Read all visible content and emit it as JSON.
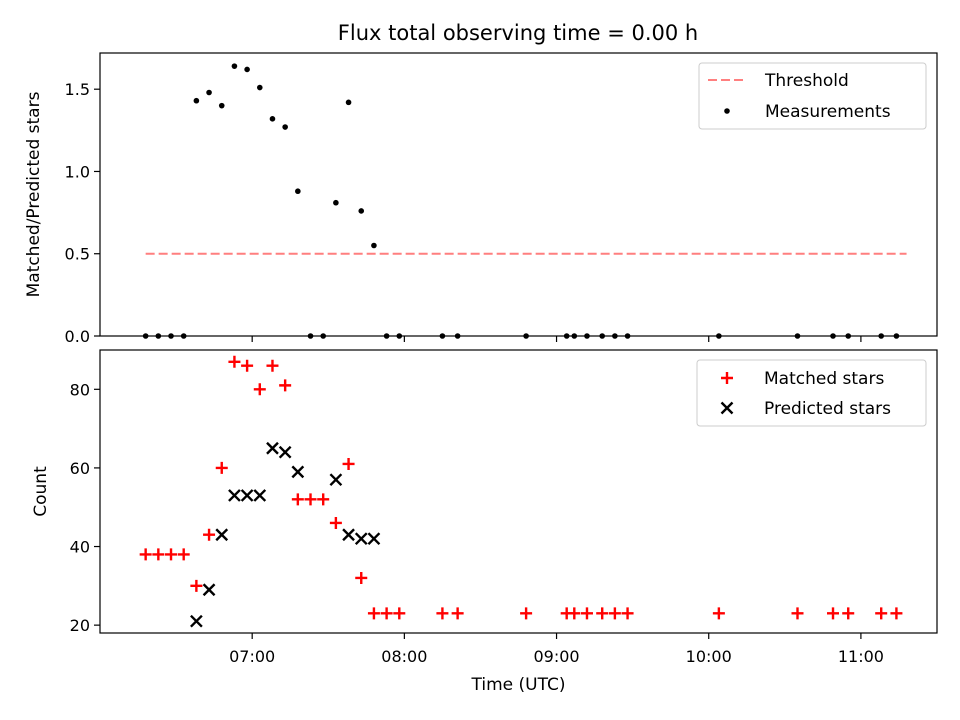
{
  "figure": {
    "title": "Flux total observing time = 0.00 h"
  },
  "chart_data": [
    {
      "type": "scatter",
      "ylabel": "Matched/Predicted stars",
      "xlim_hours": [
        6.0,
        11.5
      ],
      "ylim": [
        0,
        1.72
      ],
      "yticks": [
        0.0,
        0.5,
        1.0,
        1.5
      ],
      "ytick_labels": [
        "0.0",
        "0.5",
        "1.0",
        "1.5"
      ],
      "legend_position": "top-right",
      "threshold": {
        "name": "Threshold",
        "y": 0.5,
        "x_from": "06:18",
        "x_to": "11:18",
        "color": "#ff7f7f",
        "style": "dashed"
      },
      "series": [
        {
          "name": "Measurements",
          "color": "#000000",
          "marker": "dot",
          "points": [
            [
              "06:18",
              0.0
            ],
            [
              "06:23",
              0.0
            ],
            [
              "06:28",
              0.0
            ],
            [
              "06:33",
              0.0
            ],
            [
              "06:38",
              1.43
            ],
            [
              "06:43",
              1.48
            ],
            [
              "06:48",
              1.4
            ],
            [
              "06:53",
              1.64
            ],
            [
              "06:58",
              1.62
            ],
            [
              "07:03",
              1.51
            ],
            [
              "07:08",
              1.32
            ],
            [
              "07:13",
              1.27
            ],
            [
              "07:18",
              0.88
            ],
            [
              "07:23",
              0.0
            ],
            [
              "07:28",
              0.0
            ],
            [
              "07:33",
              0.81
            ],
            [
              "07:38",
              1.42
            ],
            [
              "07:43",
              0.76
            ],
            [
              "07:48",
              0.55
            ],
            [
              "07:53",
              0.0
            ],
            [
              "07:58",
              0.0
            ],
            [
              "08:15",
              0.0
            ],
            [
              "08:21",
              0.0
            ],
            [
              "08:48",
              0.0
            ],
            [
              "09:04",
              0.0
            ],
            [
              "09:07",
              0.0
            ],
            [
              "09:12",
              0.0
            ],
            [
              "09:18",
              0.0
            ],
            [
              "09:23",
              0.0
            ],
            [
              "09:28",
              0.0
            ],
            [
              "10:04",
              0.0
            ],
            [
              "10:35",
              0.0
            ],
            [
              "10:49",
              0.0
            ],
            [
              "10:55",
              0.0
            ],
            [
              "11:08",
              0.0
            ],
            [
              "11:14",
              0.0
            ]
          ]
        }
      ]
    },
    {
      "type": "scatter",
      "xlabel": "Time (UTC)",
      "ylabel": "Count",
      "xlim_hours": [
        6.0,
        11.5
      ],
      "ylim": [
        18,
        90
      ],
      "yticks": [
        20,
        40,
        60,
        80
      ],
      "ytick_labels": [
        "20",
        "40",
        "60",
        "80"
      ],
      "xticks": [
        "07:00",
        "08:00",
        "09:00",
        "10:00",
        "11:00"
      ],
      "legend_position": "top-right",
      "series": [
        {
          "name": "Matched stars",
          "color": "#ff0000",
          "marker": "plus",
          "points": [
            [
              "06:18",
              38
            ],
            [
              "06:23",
              38
            ],
            [
              "06:28",
              38
            ],
            [
              "06:33",
              38
            ],
            [
              "06:38",
              30
            ],
            [
              "06:43",
              43
            ],
            [
              "06:48",
              60
            ],
            [
              "06:53",
              87
            ],
            [
              "06:58",
              86
            ],
            [
              "07:03",
              80
            ],
            [
              "07:08",
              86
            ],
            [
              "07:13",
              81
            ],
            [
              "07:18",
              52
            ],
            [
              "07:23",
              52
            ],
            [
              "07:28",
              52
            ],
            [
              "07:33",
              46
            ],
            [
              "07:38",
              61
            ],
            [
              "07:43",
              32
            ],
            [
              "07:48",
              23
            ],
            [
              "07:53",
              23
            ],
            [
              "07:58",
              23
            ],
            [
              "08:15",
              23
            ],
            [
              "08:21",
              23
            ],
            [
              "08:48",
              23
            ],
            [
              "09:04",
              23
            ],
            [
              "09:07",
              23
            ],
            [
              "09:12",
              23
            ],
            [
              "09:18",
              23
            ],
            [
              "09:23",
              23
            ],
            [
              "09:28",
              23
            ],
            [
              "10:04",
              23
            ],
            [
              "10:35",
              23
            ],
            [
              "10:49",
              23
            ],
            [
              "10:55",
              23
            ],
            [
              "11:08",
              23
            ],
            [
              "11:14",
              23
            ]
          ]
        },
        {
          "name": "Predicted stars",
          "color": "#000000",
          "marker": "x",
          "points": [
            [
              "06:38",
              21
            ],
            [
              "06:43",
              29
            ],
            [
              "06:48",
              43
            ],
            [
              "06:53",
              53
            ],
            [
              "06:58",
              53
            ],
            [
              "07:03",
              53
            ],
            [
              "07:08",
              65
            ],
            [
              "07:13",
              64
            ],
            [
              "07:18",
              59
            ],
            [
              "07:33",
              57
            ],
            [
              "07:38",
              43
            ],
            [
              "07:43",
              42
            ],
            [
              "07:48",
              42
            ]
          ]
        }
      ]
    }
  ]
}
